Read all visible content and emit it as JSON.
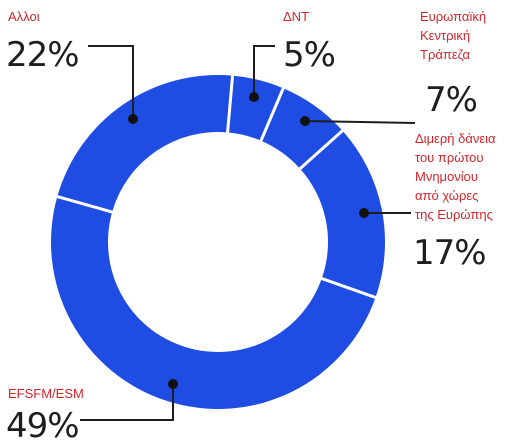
{
  "chart_data": {
    "type": "pie",
    "title": "",
    "slices": [
      {
        "label": "ΔΝΤ",
        "value": 5,
        "pct_text": "5%"
      },
      {
        "label": "Ευρωπαϊκή Κεντρική Τράπεζα",
        "label_lines": [
          "Ευρωπαϊκή",
          "Κεντρική",
          "Τράπεζα"
        ],
        "value": 7,
        "pct_text": "7%"
      },
      {
        "label": "Διμερή δάνεια του πρώτου Μνημονίου από χώρες της Ευρώπης",
        "label_lines": [
          "Διμερή δάνεια",
          "του πρώτου",
          "Μνημονίου",
          "από χώρες",
          "της Ευρώπης"
        ],
        "value": 17,
        "pct_text": "17%"
      },
      {
        "label": "EFSFM/ESM",
        "value": 49,
        "pct_text": "49%"
      },
      {
        "label": "Αλλοι",
        "value": 22,
        "pct_text": "22%"
      }
    ],
    "donut": true,
    "colors": {
      "slice": "#1f4de3",
      "separator": "#ffffff",
      "label": "#d2262b",
      "value": "#1e1e1e"
    }
  }
}
